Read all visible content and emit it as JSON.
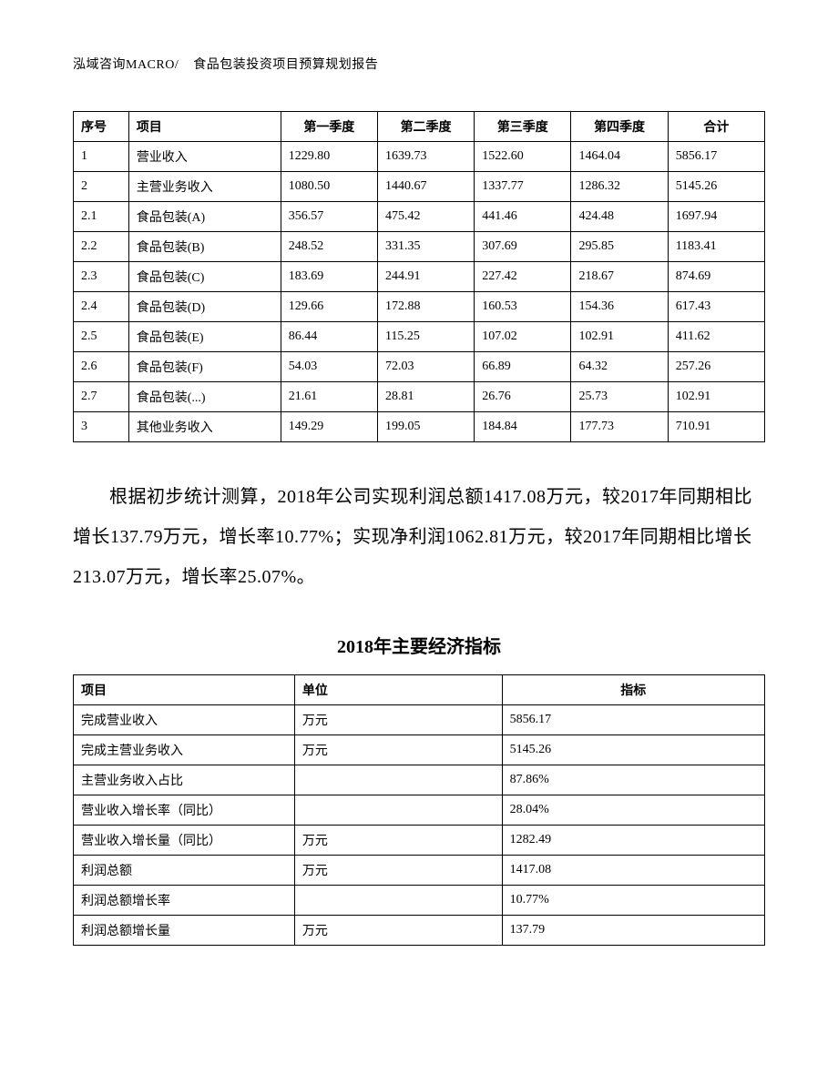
{
  "header": {
    "left": "泓域咨询MACRO/",
    "title": "食品包装投资项目预算规划报告"
  },
  "table1": {
    "columns": [
      "序号",
      "项目",
      "第一季度",
      "第二季度",
      "第三季度",
      "第四季度",
      "合计"
    ],
    "rows": [
      [
        "1",
        "营业收入",
        "1229.80",
        "1639.73",
        "1522.60",
        "1464.04",
        "5856.17"
      ],
      [
        "2",
        "主营业务收入",
        "1080.50",
        "1440.67",
        "1337.77",
        "1286.32",
        "5145.26"
      ],
      [
        "2.1",
        "食品包装(A)",
        "356.57",
        "475.42",
        "441.46",
        "424.48",
        "1697.94"
      ],
      [
        "2.2",
        "食品包装(B)",
        "248.52",
        "331.35",
        "307.69",
        "295.85",
        "1183.41"
      ],
      [
        "2.3",
        "食品包装(C)",
        "183.69",
        "244.91",
        "227.42",
        "218.67",
        "874.69"
      ],
      [
        "2.4",
        "食品包装(D)",
        "129.66",
        "172.88",
        "160.53",
        "154.36",
        "617.43"
      ],
      [
        "2.5",
        "食品包装(E)",
        "86.44",
        "115.25",
        "107.02",
        "102.91",
        "411.62"
      ],
      [
        "2.6",
        "食品包装(F)",
        "54.03",
        "72.03",
        "66.89",
        "64.32",
        "257.26"
      ],
      [
        "2.7",
        "食品包装(...)",
        "21.61",
        "28.81",
        "26.76",
        "25.73",
        "102.91"
      ],
      [
        "3",
        "其他业务收入",
        "149.29",
        "199.05",
        "184.84",
        "177.73",
        "710.91"
      ]
    ]
  },
  "paragraph": "根据初步统计测算，2018年公司实现利润总额1417.08万元，较2017年同期相比增长137.79万元，增长率10.77%；实现净利润1062.81万元，较2017年同期相比增长213.07万元，增长率25.07%。",
  "section_title": "2018年主要经济指标",
  "table2": {
    "columns": [
      "项目",
      "单位",
      "指标"
    ],
    "rows": [
      [
        "完成营业收入",
        "万元",
        "5856.17"
      ],
      [
        "完成主营业务收入",
        "万元",
        "5145.26"
      ],
      [
        "主营业务收入占比",
        "",
        "87.86%"
      ],
      [
        "营业收入增长率（同比）",
        "",
        "28.04%"
      ],
      [
        "营业收入增长量（同比）",
        "万元",
        "1282.49"
      ],
      [
        "利润总额",
        "万元",
        "1417.08"
      ],
      [
        "利润总额增长率",
        "",
        "10.77%"
      ],
      [
        "利润总额增长量",
        "万元",
        "137.79"
      ]
    ]
  }
}
